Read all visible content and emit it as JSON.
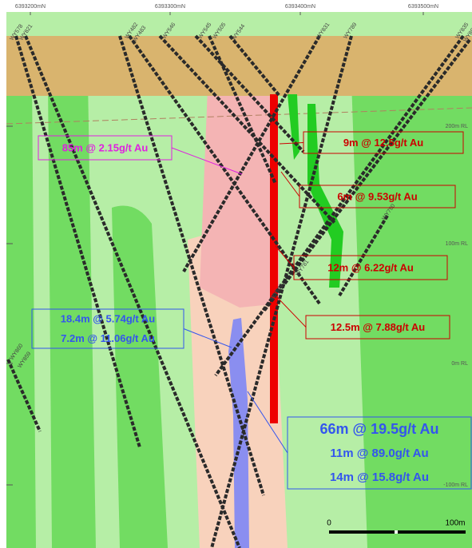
{
  "northings": [
    "6393200mN",
    "6393300mN",
    "6393400mN",
    "6393500mN"
  ],
  "elevations": [
    "200m RL",
    "100m RL",
    "0m RL",
    "-100m RL"
  ],
  "drillholes": [
    "WY578",
    "WY821",
    "WY482",
    "WY483",
    "WY546",
    "WY545",
    "WY505",
    "WY544",
    "WY831",
    "WY789",
    "WY835",
    "WY807",
    "WY790",
    "WY781",
    "WY549",
    "WY860",
    "WY859"
  ],
  "intercepts": [
    {
      "lines": [
        "85m @ 2.15g/t Au"
      ]
    },
    {
      "lines": [
        "9m @ 12.5g/t Au"
      ]
    },
    {
      "lines": [
        "6m @ 9.53g/t Au"
      ]
    },
    {
      "lines": [
        "12m @ 6.22g/t Au"
      ]
    },
    {
      "lines": [
        "12.5m @ 7.88g/t Au"
      ]
    },
    {
      "lines": [
        "18.4m @ 5.74g/t Au",
        "7.2m @ 11.06g/t Au"
      ]
    },
    {
      "lines": [
        "66m @ 19.5g/t Au",
        "11m @ 89.0g/t Au",
        "14m @ 15.8g/t Au"
      ]
    }
  ],
  "scale": {
    "start": "0",
    "end": "100m"
  }
}
